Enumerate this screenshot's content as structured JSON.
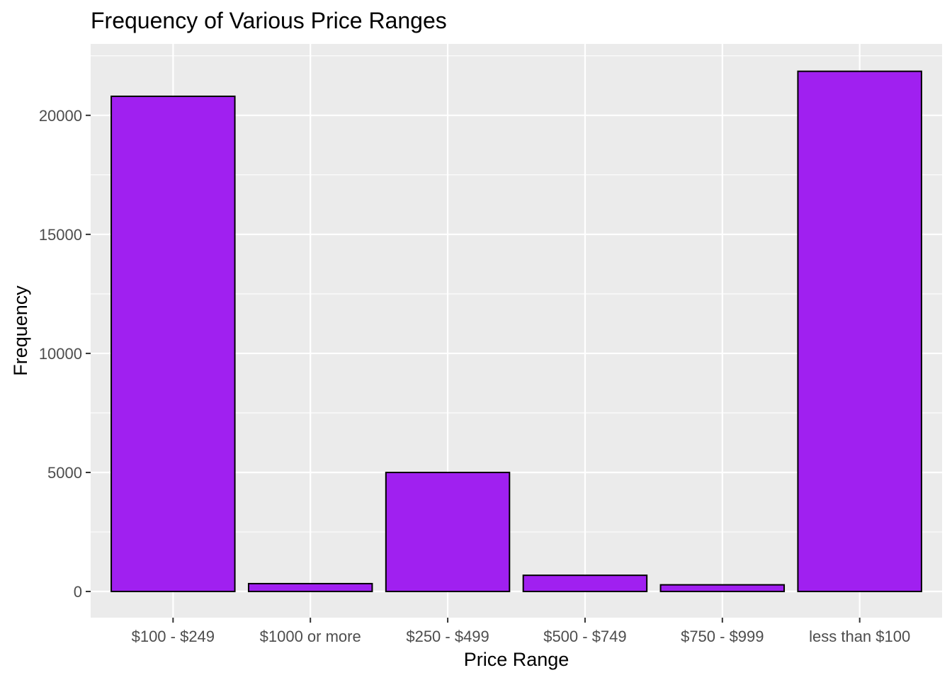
{
  "chart_data": {
    "type": "bar",
    "title": "Frequency of Various Price Ranges",
    "xlabel": "Price Range",
    "ylabel": "Frequency",
    "categories": [
      "$100 - $249",
      "$1000 or more",
      "$250 - $499",
      "$500 - $749",
      "$750 - $999",
      "less than $100"
    ],
    "values": [
      20800,
      330,
      5000,
      680,
      280,
      21850
    ],
    "ylim": [
      -1100,
      23000
    ],
    "yticks": [
      0,
      5000,
      10000,
      15000,
      20000
    ],
    "ytick_labels": [
      "0",
      "5000",
      "10000",
      "15000",
      "20000"
    ],
    "grid": true,
    "legend": "none",
    "colors": {
      "bar_fill": "#a020f0",
      "bar_outline": "#000000",
      "panel_background": "#ebebeb",
      "grid": "#ffffff"
    }
  }
}
